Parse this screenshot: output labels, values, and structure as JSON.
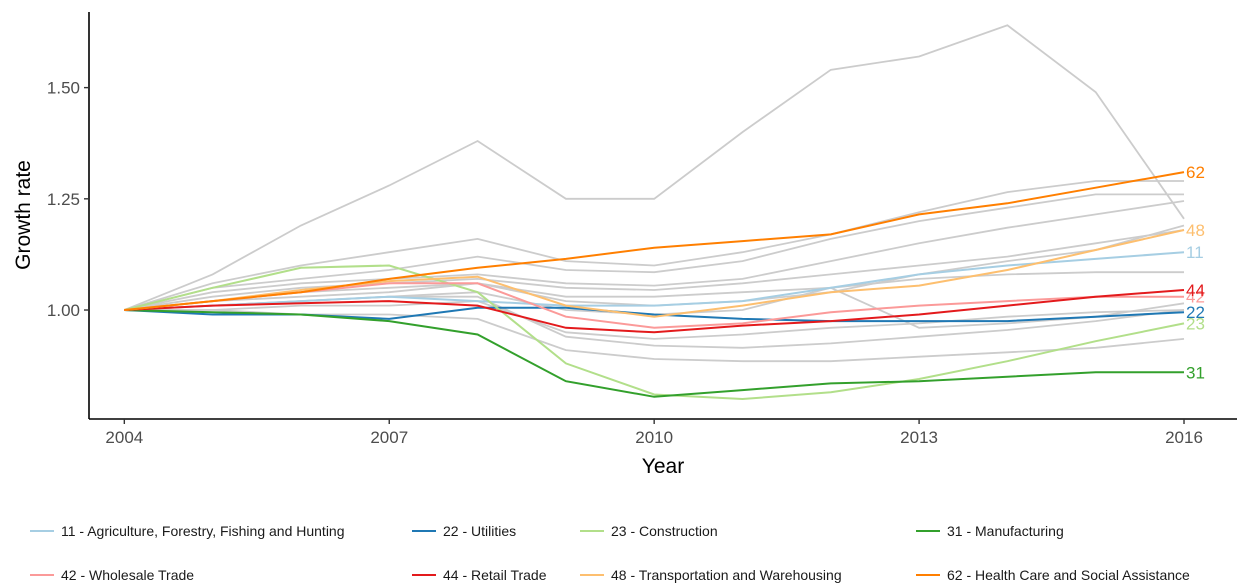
{
  "chart_data": {
    "type": "line",
    "xlabel": "Year",
    "ylabel": "Growth rate",
    "xlim": [
      2003.6,
      2016.6
    ],
    "ylim": [
      0.755,
      1.67
    ],
    "x_ticks": [
      "2004",
      "2007",
      "2010",
      "2013",
      "2016"
    ],
    "y_ticks": [
      "1.00",
      "1.25",
      "1.50"
    ],
    "grid": false,
    "legend_position": "bottom",
    "years": [
      2004,
      2005,
      2006,
      2007,
      2008,
      2009,
      2010,
      2011,
      2012,
      2013,
      2014,
      2015,
      2016
    ],
    "background_series": [
      [
        1.0,
        1.08,
        1.19,
        1.28,
        1.38,
        1.25,
        1.25,
        1.4,
        1.54,
        1.57,
        1.64,
        1.49,
        1.205
      ],
      [
        1.0,
        1.06,
        1.1,
        1.13,
        1.16,
        1.11,
        1.1,
        1.13,
        1.17,
        1.22,
        1.265,
        1.29,
        1.29
      ],
      [
        1.0,
        1.05,
        1.07,
        1.09,
        1.12,
        1.09,
        1.085,
        1.11,
        1.16,
        1.2,
        1.23,
        1.26,
        1.26
      ],
      [
        1.0,
        1.04,
        1.06,
        1.07,
        1.08,
        1.06,
        1.055,
        1.07,
        1.11,
        1.15,
        1.185,
        1.215,
        1.245
      ],
      [
        1.0,
        1.03,
        1.05,
        1.06,
        1.07,
        1.05,
        1.045,
        1.06,
        1.08,
        1.1,
        1.12,
        1.15,
        1.18
      ],
      [
        1.0,
        1.02,
        1.04,
        1.05,
        1.06,
        1.03,
        1.03,
        1.04,
        1.05,
        1.07,
        1.08,
        1.085,
        1.085
      ],
      [
        1.0,
        1.02,
        1.03,
        1.04,
        1.06,
        1.02,
        1.01,
        1.02,
        1.04,
        1.08,
        1.11,
        1.135,
        1.19
      ],
      [
        1.0,
        1.01,
        1.02,
        1.03,
        1.04,
        1.0,
        0.99,
        1.0,
        1.05,
        0.96,
        0.97,
        0.985,
        1.015
      ],
      [
        1.0,
        1.01,
        1.02,
        1.03,
        1.03,
        0.94,
        0.92,
        0.915,
        0.925,
        0.94,
        0.955,
        0.975,
        1.0
      ],
      [
        1.0,
        1.0,
        0.99,
        0.99,
        0.98,
        0.91,
        0.89,
        0.885,
        0.885,
        0.895,
        0.905,
        0.915,
        0.935
      ],
      [
        1.0,
        1.0,
        1.01,
        1.01,
        1.02,
        0.95,
        0.935,
        0.945,
        0.96,
        0.97,
        0.985,
        0.995,
        1.0
      ]
    ],
    "series": [
      {
        "name": "11 - Agriculture, Forestry, Fishing and Hunting",
        "code": "11",
        "color": "#a6cee3",
        "values": [
          1.0,
          1.01,
          1.02,
          1.03,
          1.02,
          1.01,
          1.01,
          1.02,
          1.05,
          1.08,
          1.1,
          1.115,
          1.13
        ]
      },
      {
        "name": "22 - Utilities",
        "code": "22",
        "color": "#1f78b4",
        "values": [
          1.0,
          0.99,
          0.99,
          0.98,
          1.005,
          1.005,
          0.99,
          0.98,
          0.975,
          0.975,
          0.975,
          0.985,
          0.995
        ]
      },
      {
        "name": "23 - Construction",
        "code": "23",
        "color": "#b2df8a",
        "values": [
          1.0,
          1.05,
          1.095,
          1.1,
          1.04,
          0.88,
          0.81,
          0.8,
          0.815,
          0.845,
          0.885,
          0.93,
          0.97
        ]
      },
      {
        "name": "31 - Manufacturing",
        "code": "31",
        "color": "#33a02c",
        "values": [
          1.0,
          0.995,
          0.99,
          0.975,
          0.945,
          0.84,
          0.805,
          0.82,
          0.835,
          0.84,
          0.85,
          0.86,
          0.86
        ]
      },
      {
        "name": "42 - Wholesale Trade",
        "code": "42",
        "color": "#fb9a99",
        "values": [
          1.0,
          1.02,
          1.04,
          1.06,
          1.06,
          0.985,
          0.96,
          0.97,
          0.995,
          1.01,
          1.02,
          1.03,
          1.03
        ]
      },
      {
        "name": "44 - Retail Trade",
        "code": "44",
        "color": "#e31a1c",
        "values": [
          1.0,
          1.01,
          1.015,
          1.02,
          1.01,
          0.96,
          0.95,
          0.965,
          0.975,
          0.99,
          1.01,
          1.03,
          1.045
        ]
      },
      {
        "name": "48 - Transportation and Warehousing",
        "code": "48",
        "color": "#fdbf6f",
        "values": [
          1.0,
          1.02,
          1.045,
          1.065,
          1.075,
          1.01,
          0.985,
          1.01,
          1.04,
          1.055,
          1.09,
          1.135,
          1.18
        ]
      },
      {
        "name": "62 - Health Care and Social Assistance",
        "code": "62",
        "color": "#ff7f00",
        "values": [
          1.0,
          1.02,
          1.04,
          1.07,
          1.095,
          1.115,
          1.14,
          1.155,
          1.17,
          1.215,
          1.24,
          1.275,
          1.31
        ]
      }
    ]
  }
}
